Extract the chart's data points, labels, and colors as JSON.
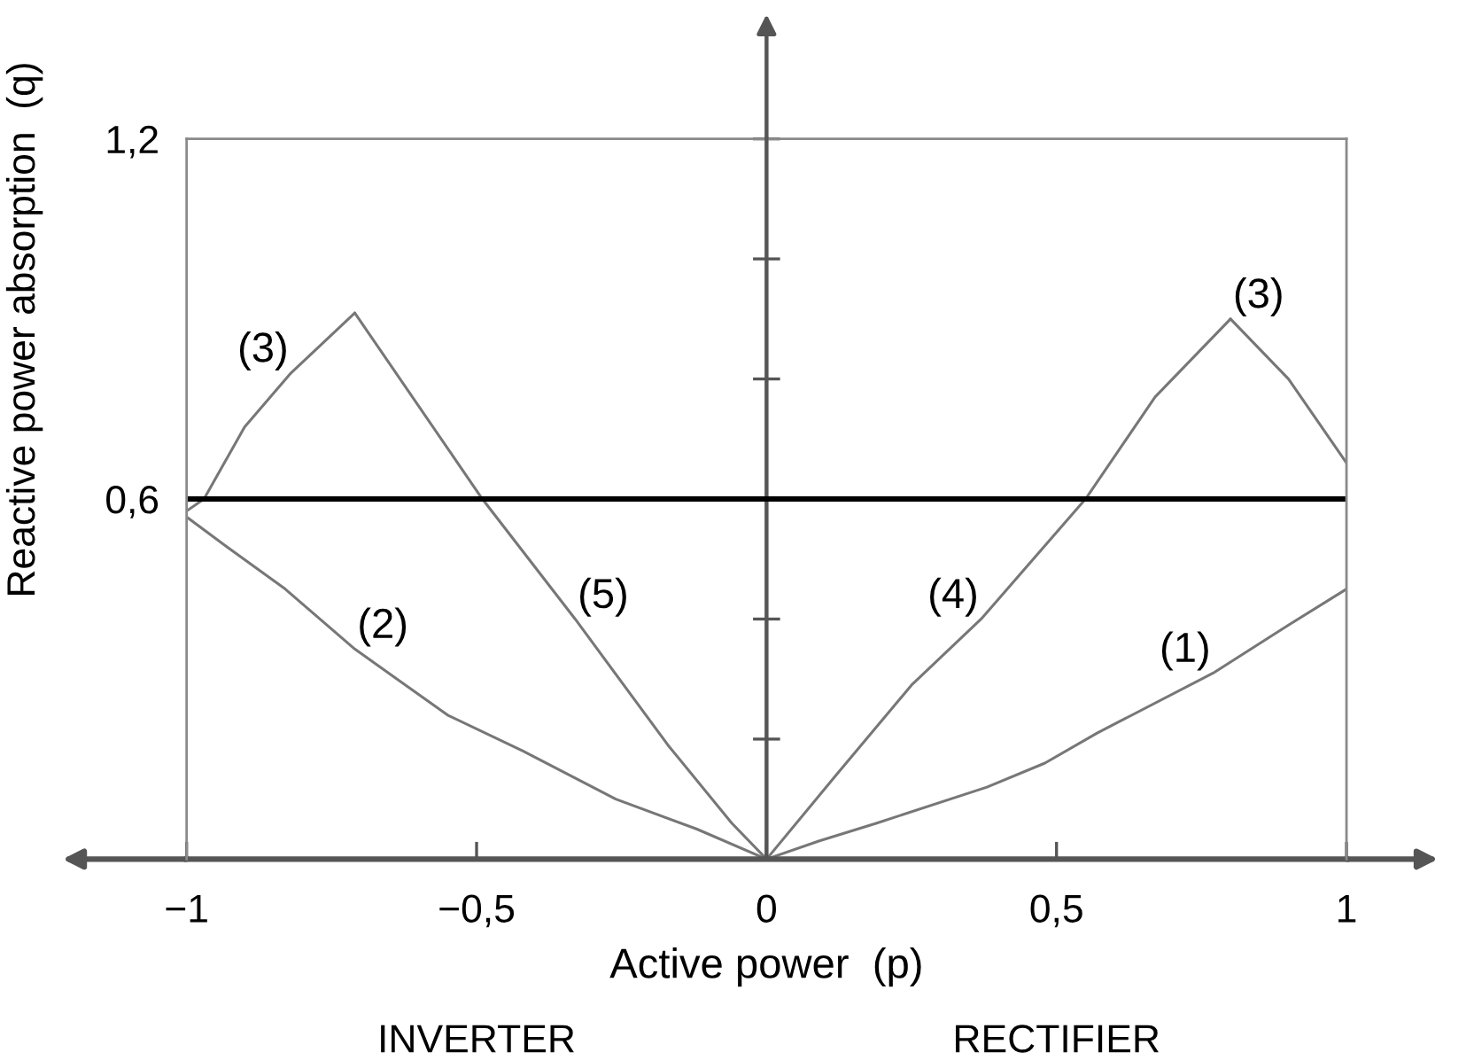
{
  "chart_data": {
    "type": "line",
    "xlabel": "Active power  (p)",
    "ylabel": "Reactive power absorption  (q)",
    "xlim": [
      -1,
      1
    ],
    "ylim": [
      0,
      1.2
    ],
    "xticks": [
      {
        "value": -1,
        "label": "−1"
      },
      {
        "value": -0.5,
        "label": "−0,5"
      },
      0,
      {
        "value": 0.5,
        "label": "0,5"
      },
      1
    ],
    "yticks": [
      {
        "value": 0.2,
        "label": null
      },
      {
        "value": 0.4,
        "label": null
      },
      {
        "value": 0.6,
        "label": "0,6"
      },
      {
        "value": 0.8,
        "label": null
      },
      {
        "value": 1,
        "label": null
      },
      {
        "value": 1.2,
        "label": "1,2"
      }
    ],
    "series": [
      {
        "color": "#777777",
        "x": [
          0,
          0.09,
          0.19,
          0.38,
          0.48,
          0.57,
          0.77,
          0.9,
          1
        ],
        "values": [
          0,
          0.03,
          0.06,
          0.12,
          0.16,
          0.21,
          0.31,
          0.39,
          0.45
        ]
      },
      {
        "color": "#777777",
        "x": [
          -1,
          -0.93,
          -0.83,
          -0.71,
          -0.55,
          -0.42,
          -0.26,
          -0.12,
          0
        ],
        "values": [
          0.57,
          0.52,
          0.45,
          0.35,
          0.24,
          0.18,
          0.1,
          0.05,
          0
        ]
      },
      {
        "color": "#777777",
        "x": [
          -1,
          -0.97,
          -0.9,
          -0.82,
          -0.71
        ],
        "values": [
          0.58,
          0.6,
          0.72,
          0.81,
          0.91
        ]
      },
      {
        "color": "#777777",
        "x": [
          -0.71,
          -0.49,
          -0.33,
          -0.17,
          -0.06,
          0
        ],
        "values": [
          0.91,
          0.6,
          0.4,
          0.19,
          0.06,
          0
        ]
      },
      {
        "color": "#777777",
        "x": [
          0,
          0.12,
          0.25,
          0.37,
          0.55,
          0.67,
          0.8
        ],
        "values": [
          0,
          0.14,
          0.29,
          0.4,
          0.6,
          0.77,
          0.9
        ]
      },
      {
        "color": "#777777",
        "x": [
          0.8,
          0.9,
          1
        ],
        "values": [
          0.9,
          0.8,
          0.66
        ]
      }
    ],
    "ref_lines": [
      {
        "axis": "y",
        "value": 0.6,
        "color": "#000000"
      }
    ],
    "annotations": [
      {
        "text": "(1)",
        "x": 0.77,
        "y": 0.31
      },
      {
        "text": "(2)",
        "x": -0.71,
        "y": 0.35
      },
      {
        "text": "(3)",
        "x": -0.82,
        "y": 0.81
      },
      {
        "text": "(3)",
        "x": 0.8,
        "y": 0.9
      },
      {
        "text": "(4)",
        "x": 0.37,
        "y": 0.4
      },
      {
        "text": "(5)",
        "x": -0.33,
        "y": 0.4
      },
      "INVERTER",
      "RECTIFIER"
    ]
  }
}
